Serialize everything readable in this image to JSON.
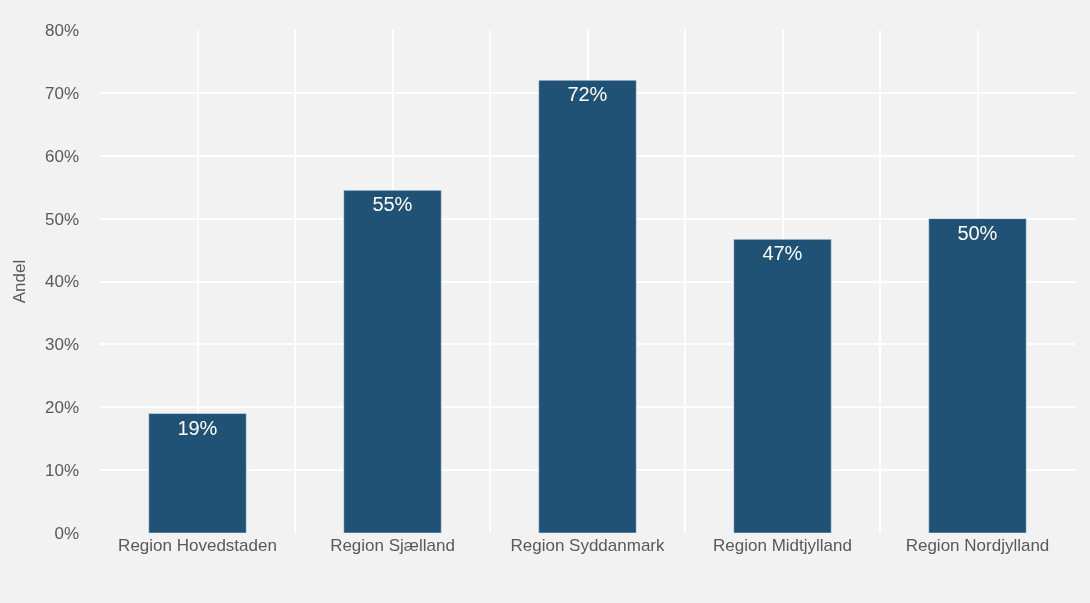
{
  "chart_data": {
    "type": "bar",
    "ylabel": "Andel",
    "categories": [
      "Region Hovedstaden",
      "Region Sjælland",
      "Region Syddanmark",
      "Region Midtjylland",
      "Region Nordjylland"
    ],
    "values": [
      19,
      54.5,
      72,
      46.7,
      50
    ],
    "value_labels": [
      "19%",
      "55%",
      "72%",
      "47%",
      "50%"
    ],
    "color": "#1f5274",
    "ylim": [
      0,
      80
    ],
    "yticks": [
      {
        "value": 0,
        "label": "0%"
      },
      {
        "value": 10,
        "label": "10%"
      },
      {
        "value": 20,
        "label": "20%"
      },
      {
        "value": 30,
        "label": "30%"
      },
      {
        "value": 40,
        "label": "40%"
      },
      {
        "value": 50,
        "label": "50%"
      },
      {
        "value": 60,
        "label": "60%"
      },
      {
        "value": 70,
        "label": "70%"
      },
      {
        "value": 80,
        "label": "80%"
      }
    ],
    "grid": true,
    "legend": false
  }
}
